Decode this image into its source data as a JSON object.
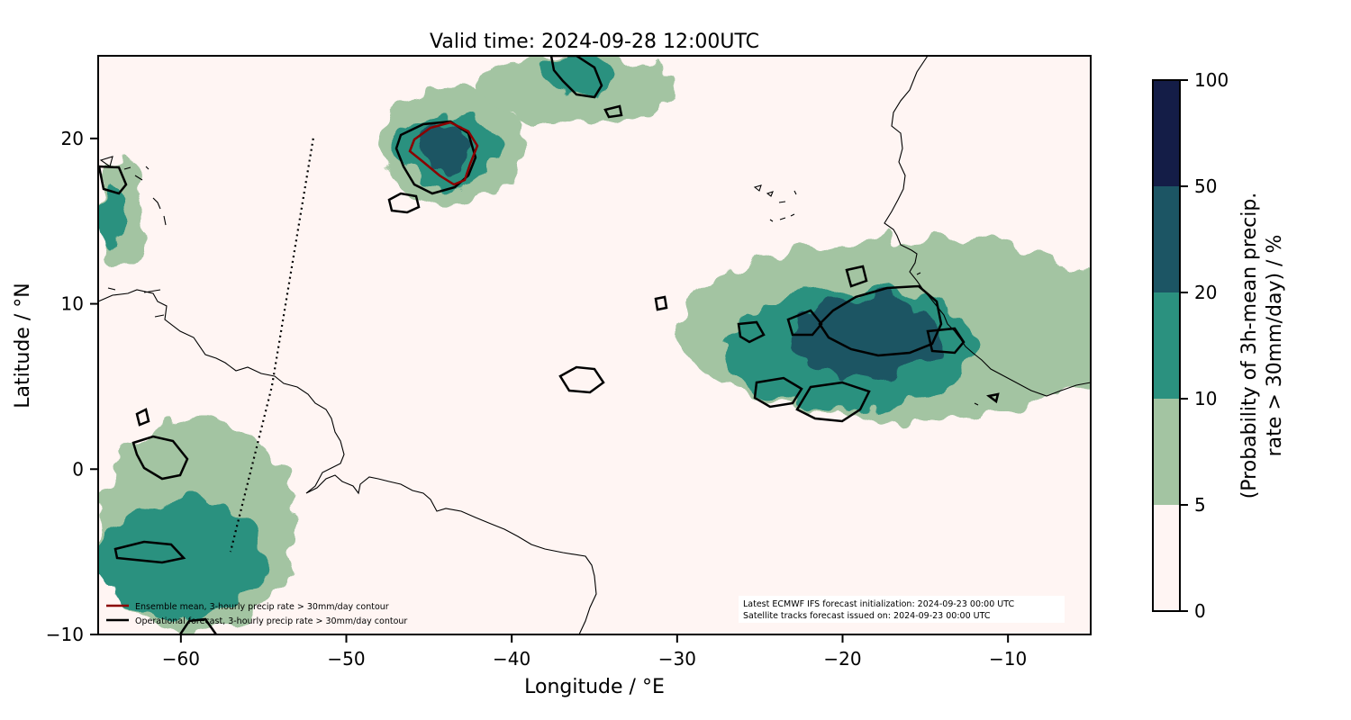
{
  "chart_data": {
    "type": "heatmap",
    "title": "Valid time: 2024-09-28 12:00UTC",
    "xlabel": "Longitude / °E",
    "ylabel": "Latitude / °N",
    "xlim": [
      -65,
      -5
    ],
    "ylim": [
      -10,
      25
    ],
    "x_ticks": [
      -60,
      -50,
      -40,
      -30,
      -20,
      -10
    ],
    "x_tick_labels": [
      "−60",
      "−50",
      "−40",
      "−30",
      "−20",
      "−10"
    ],
    "y_ticks": [
      -10,
      0,
      10,
      20
    ],
    "y_tick_labels": [
      "−10",
      "0",
      "10",
      "20"
    ],
    "colorbar": {
      "label_line1": "(Probability of 3h-mean precip.",
      "label_line2": "rate > 30mm/day) / %",
      "levels": [
        0,
        5,
        10,
        20,
        50,
        100
      ],
      "level_labels": [
        "0",
        "5",
        "10",
        "20",
        "50",
        "100"
      ],
      "colors": [
        "#fff5f3",
        "#a3c4a2",
        "#2b917f",
        "#1c5564",
        "#141d47"
      ]
    },
    "legend": [
      {
        "label": "Ensemble mean, 3-hourly precip rate > 30mm/day contour",
        "color": "#8b0000"
      },
      {
        "label": "Operational forecast, 3-hourly precip rate > 30mm/day contour",
        "color": "#000000"
      }
    ],
    "legend_position": "bottom-left",
    "info_line1": "Latest ECMWF IFS forecast initialization: 2024-09-23 00:00 UTC",
    "info_line2": "Satellite tracks forecast issued on: 2024-09-23 00:00 UTC",
    "info_position": "bottom-right",
    "satellite_track": [
      [
        -52,
        20
      ],
      [
        -54.5,
        5
      ],
      [
        -57,
        -5
      ]
    ],
    "probability_regions": [
      {
        "name": "west-africa-system",
        "level": 5,
        "lon": [
          -30,
          -2
        ],
        "lat": [
          3,
          14
        ]
      },
      {
        "name": "west-africa-system",
        "level": 10,
        "lon": [
          -27,
          -12
        ],
        "lat": [
          3.5,
          11
        ]
      },
      {
        "name": "west-africa-system",
        "level": 20,
        "lon": [
          -23,
          -14
        ],
        "lat": [
          5.5,
          10.5
        ]
      },
      {
        "name": "north-system",
        "level": 5,
        "lon": [
          -48,
          -39
        ],
        "lat": [
          16,
          23
        ]
      },
      {
        "name": "north-system",
        "level": 10,
        "lon": [
          -47,
          -41
        ],
        "lat": [
          17,
          21.5
        ]
      },
      {
        "name": "north-system",
        "level": 20,
        "lon": [
          -45.5,
          -42.5
        ],
        "lat": [
          18,
          21
        ]
      },
      {
        "name": "north-east-system",
        "level": 5,
        "lon": [
          -42,
          -30
        ],
        "lat": [
          21,
          25
        ]
      },
      {
        "name": "north-east-system",
        "level": 10,
        "lon": [
          -38,
          -34
        ],
        "lat": [
          22.5,
          25
        ]
      },
      {
        "name": "south-america-system",
        "level": 5,
        "lon": [
          -65,
          -53
        ],
        "lat": [
          -10,
          3
        ]
      },
      {
        "name": "south-america-system",
        "level": 10,
        "lon": [
          -65,
          -55
        ],
        "lat": [
          -9,
          -2
        ]
      },
      {
        "name": "caribbean-system",
        "level": 5,
        "lon": [
          -65,
          -62
        ],
        "lat": [
          12,
          19
        ]
      },
      {
        "name": "caribbean-system",
        "level": 10,
        "lon": [
          -65,
          -63.5
        ],
        "lat": [
          13,
          17
        ]
      }
    ]
  }
}
